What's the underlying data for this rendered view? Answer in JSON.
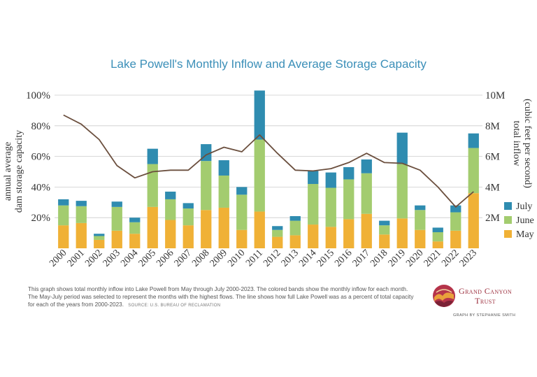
{
  "chart_data": {
    "type": "bar",
    "title": "Lake Powell's Monthly Inflow and Average Storage Capacity",
    "categories": [
      "2000",
      "2001",
      "2002",
      "2003",
      "2004",
      "2005",
      "2006",
      "2007",
      "2008",
      "2009",
      "2010",
      "2011",
      "2012",
      "2013",
      "2014",
      "2015",
      "2016",
      "2017",
      "2018",
      "2019",
      "2020",
      "2021",
      "2022",
      "2023"
    ],
    "stacked": true,
    "series": [
      {
        "name": "May",
        "color": "#f0b136",
        "values": [
          1.5,
          1.65,
          0.55,
          1.15,
          0.95,
          2.7,
          1.85,
          1.5,
          2.5,
          2.65,
          1.2,
          2.4,
          0.75,
          0.85,
          1.55,
          1.4,
          1.9,
          2.25,
          0.9,
          1.95,
          1.2,
          0.45,
          1.15,
          3.6
        ]
      },
      {
        "name": "June",
        "color": "#a3cc6f",
        "values": [
          1.3,
          1.1,
          0.25,
          1.55,
          0.75,
          2.8,
          1.35,
          1.1,
          3.2,
          2.1,
          2.3,
          4.7,
          0.45,
          0.95,
          2.65,
          2.55,
          2.6,
          2.65,
          0.6,
          3.55,
          1.3,
          0.6,
          1.2,
          2.95
        ]
      },
      {
        "name": "July",
        "color": "#2f8cb0",
        "values": [
          0.4,
          0.35,
          0.15,
          0.35,
          0.3,
          1.0,
          0.5,
          0.35,
          1.1,
          1.0,
          0.5,
          3.2,
          0.25,
          0.3,
          0.85,
          1.0,
          0.8,
          0.9,
          0.3,
          2.05,
          0.3,
          0.3,
          0.45,
          0.95
        ]
      }
    ],
    "line": {
      "values": [
        87,
        81,
        71,
        54,
        46,
        50,
        51,
        51,
        61,
        66,
        63,
        74,
        62,
        51,
        50.5,
        52,
        56,
        62,
        56,
        55.5,
        51,
        40,
        27,
        37
      ]
    },
    "y_left": {
      "label": "annual average\ndam storage capacity",
      "ticks": [
        "20%",
        "40%",
        "60%",
        "80%",
        "100%"
      ],
      "tick_values": [
        20,
        40,
        60,
        80,
        100
      ],
      "range": [
        0,
        100
      ]
    },
    "y_right": {
      "label": "total inflow\n(cubic feet per second)",
      "ticks": [
        "2M",
        "4M",
        "6M",
        "8M",
        "10M"
      ],
      "tick_values": [
        2,
        4,
        6,
        8,
        10
      ],
      "range": [
        0,
        10
      ]
    },
    "legend_position": "right",
    "grid": true
  },
  "caption": {
    "text": "This graph shows total monthly inflow into Lake Powell from May through July 2000-2023. The colored bands show the monthly inflow for each month. The May-July period was selected to represent the months with the highest flows. The line shows how full Lake Powell was as a percent of total capacity for each of the years from 2000-2023.",
    "source": "SOURCE: U.S. BUREAU OF RECLAMATION"
  },
  "logo": {
    "line1": "Grand Canyon",
    "line2": "Trust"
  },
  "credit": "GRAPH BY STEPHANIE SMITH",
  "colors": {
    "title": "#3b8fb8",
    "line": "#6b4f3e",
    "grid": "#cccccc",
    "brand": "#9b2c3b"
  }
}
